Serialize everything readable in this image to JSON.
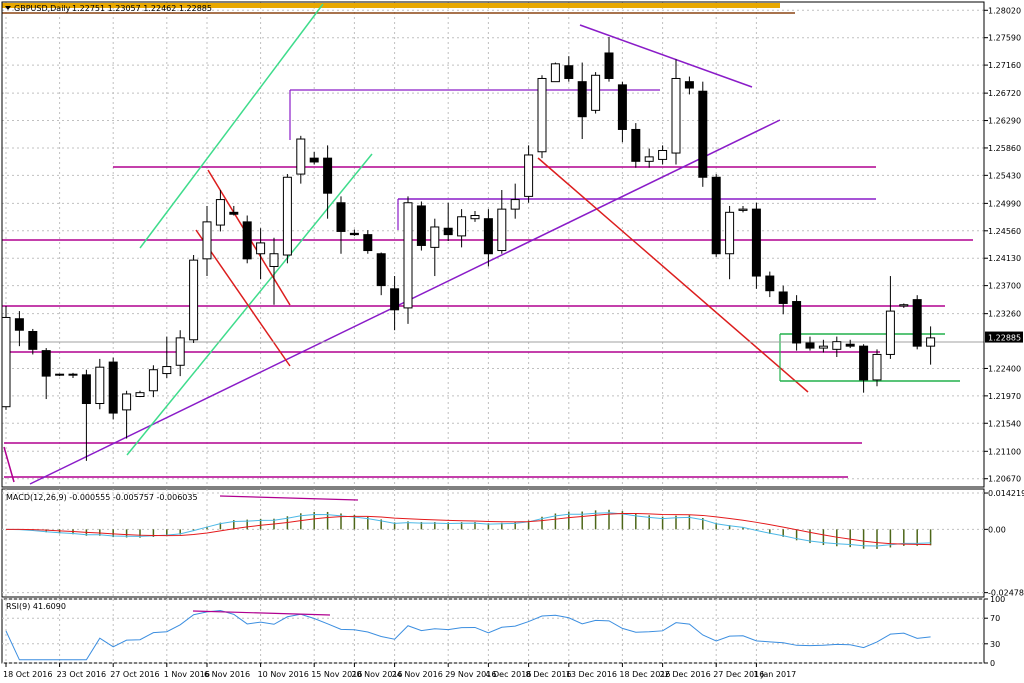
{
  "window": {
    "symbol_title": "GBPUSD,Daily",
    "ohlc_text": "1.22751 1.23057 1.22462 1.22885"
  },
  "price_axis": {
    "ticks": [
      "1.28020",
      "1.27590",
      "1.27160",
      "1.26720",
      "1.26290",
      "1.25860",
      "1.25430",
      "1.24990",
      "1.24560",
      "1.24130",
      "1.23700",
      "1.23260",
      "1.22400",
      "1.21970",
      "1.21540",
      "1.21100",
      "1.20670"
    ],
    "current_price": "1.22885",
    "range": [
      1.2054,
      1.2815
    ]
  },
  "macd_panel": {
    "title": "MACD(12,26,9) -0.000555 -0.005757 -0.006035",
    "ticks": [
      "0.014219",
      "0.00",
      "-0.024787"
    ],
    "range": [
      -0.0265,
      0.0158
    ]
  },
  "rsi_panel": {
    "title": "RSI(9) 41.6090",
    "ticks": [
      "100",
      "70",
      "30",
      "0"
    ],
    "range": [
      0,
      100
    ]
  },
  "date_axis": {
    "labels": [
      "18 Oct 2016",
      "23 Oct 2016",
      "27 Oct 2016",
      "1 Nov 2016",
      "6 Nov 2016",
      "10 Nov 2016",
      "15 Nov 2016",
      "20 Nov 2016",
      "24 Nov 2016",
      "29 Nov 2016",
      "4 Dec 2016",
      "8 Dec 2016",
      "13 Dec 2016",
      "18 Dec 2016",
      "22 Dec 2016",
      "27 Dec 2016",
      "1 Jan 2017"
    ]
  },
  "colors": {
    "bull": "#ffffff",
    "bear": "#000000",
    "grid": "#c0c0c0",
    "magenta": "#b0008f",
    "purple": "#8a1cc8",
    "red": "#dc1e1e",
    "green": "#22b14c",
    "cyan": "#3fdc8c",
    "gold": "#e8a800",
    "macd_hist": "#4d6619",
    "signal": "#e41a1c",
    "macd_line": "#4cb8e6",
    "rsi": "#3b8ee0"
  },
  "chart_data": {
    "type": "candlestick",
    "title": "GBPUSD,Daily",
    "candles": [
      {
        "o": 1.218,
        "h": 1.2338,
        "l": 1.2175,
        "c": 1.232
      },
      {
        "o": 1.2318,
        "h": 1.233,
        "l": 1.2275,
        "c": 1.23
      },
      {
        "o": 1.2298,
        "h": 1.2302,
        "l": 1.2262,
        "c": 1.227
      },
      {
        "o": 1.2268,
        "h": 1.2272,
        "l": 1.2192,
        "c": 1.2228
      },
      {
        "o": 1.223,
        "h": 1.2232,
        "l": 1.2228,
        "c": 1.2231
      },
      {
        "o": 1.2231,
        "h": 1.2233,
        "l": 1.2225,
        "c": 1.223
      },
      {
        "o": 1.223,
        "h": 1.2238,
        "l": 1.2095,
        "c": 1.2185
      },
      {
        "o": 1.2185,
        "h": 1.2255,
        "l": 1.2176,
        "c": 1.2242
      },
      {
        "o": 1.225,
        "h": 1.2257,
        "l": 1.216,
        "c": 1.217
      },
      {
        "o": 1.2175,
        "h": 1.2205,
        "l": 1.213,
        "c": 1.22
      },
      {
        "o": 1.2196,
        "h": 1.2205,
        "l": 1.2195,
        "c": 1.2202
      },
      {
        "o": 1.2205,
        "h": 1.2245,
        "l": 1.2195,
        "c": 1.2238
      },
      {
        "o": 1.2232,
        "h": 1.229,
        "l": 1.2225,
        "c": 1.2243
      },
      {
        "o": 1.2245,
        "h": 1.23,
        "l": 1.2228,
        "c": 1.2288
      },
      {
        "o": 1.2285,
        "h": 1.2418,
        "l": 1.228,
        "c": 1.241
      },
      {
        "o": 1.2412,
        "h": 1.2495,
        "l": 1.2385,
        "c": 1.247
      },
      {
        "o": 1.2465,
        "h": 1.252,
        "l": 1.2455,
        "c": 1.2505
      },
      {
        "o": 1.2485,
        "h": 1.2495,
        "l": 1.248,
        "c": 1.2482
      },
      {
        "o": 1.247,
        "h": 1.248,
        "l": 1.2405,
        "c": 1.2412
      },
      {
        "o": 1.242,
        "h": 1.246,
        "l": 1.238,
        "c": 1.2437
      },
      {
        "o": 1.24,
        "h": 1.2445,
        "l": 1.234,
        "c": 1.242
      },
      {
        "o": 1.2418,
        "h": 1.2545,
        "l": 1.2405,
        "c": 1.254
      },
      {
        "o": 1.2545,
        "h": 1.2605,
        "l": 1.253,
        "c": 1.26
      },
      {
        "o": 1.257,
        "h": 1.258,
        "l": 1.256,
        "c": 1.2564
      },
      {
        "o": 1.257,
        "h": 1.259,
        "l": 1.2475,
        "c": 1.2515
      },
      {
        "o": 1.25,
        "h": 1.251,
        "l": 1.242,
        "c": 1.2455
      },
      {
        "o": 1.2452,
        "h": 1.2458,
        "l": 1.2448,
        "c": 1.245
      },
      {
        "o": 1.245,
        "h": 1.2457,
        "l": 1.242,
        "c": 1.2425
      },
      {
        "o": 1.242,
        "h": 1.2422,
        "l": 1.2355,
        "c": 1.237
      },
      {
        "o": 1.2365,
        "h": 1.2385,
        "l": 1.23,
        "c": 1.2332
      },
      {
        "o": 1.2335,
        "h": 1.251,
        "l": 1.231,
        "c": 1.25
      },
      {
        "o": 1.2495,
        "h": 1.2502,
        "l": 1.2425,
        "c": 1.2433
      },
      {
        "o": 1.243,
        "h": 1.2475,
        "l": 1.2385,
        "c": 1.2462
      },
      {
        "o": 1.246,
        "h": 1.25,
        "l": 1.244,
        "c": 1.245
      },
      {
        "o": 1.2448,
        "h": 1.249,
        "l": 1.243,
        "c": 1.2478
      },
      {
        "o": 1.2475,
        "h": 1.2487,
        "l": 1.247,
        "c": 1.248
      },
      {
        "o": 1.2475,
        "h": 1.249,
        "l": 1.24,
        "c": 1.242
      },
      {
        "o": 1.2425,
        "h": 1.252,
        "l": 1.242,
        "c": 1.249
      },
      {
        "o": 1.249,
        "h": 1.253,
        "l": 1.2475,
        "c": 1.2505
      },
      {
        "o": 1.251,
        "h": 1.259,
        "l": 1.25,
        "c": 1.2575
      },
      {
        "o": 1.258,
        "h": 1.27,
        "l": 1.257,
        "c": 1.2695
      },
      {
        "o": 1.269,
        "h": 1.272,
        "l": 1.269,
        "c": 1.2718
      },
      {
        "o": 1.2715,
        "h": 1.273,
        "l": 1.269,
        "c": 1.2695
      },
      {
        "o": 1.269,
        "h": 1.272,
        "l": 1.26,
        "c": 1.2635
      },
      {
        "o": 1.2645,
        "h": 1.2705,
        "l": 1.264,
        "c": 1.27
      },
      {
        "o": 1.2735,
        "h": 1.276,
        "l": 1.269,
        "c": 1.2695
      },
      {
        "o": 1.2685,
        "h": 1.269,
        "l": 1.2595,
        "c": 1.2615
      },
      {
        "o": 1.2615,
        "h": 1.2625,
        "l": 1.2555,
        "c": 1.2565
      },
      {
        "o": 1.2565,
        "h": 1.2585,
        "l": 1.2555,
        "c": 1.2572
      },
      {
        "o": 1.2568,
        "h": 1.259,
        "l": 1.256,
        "c": 1.2582
      },
      {
        "o": 1.2578,
        "h": 1.2725,
        "l": 1.256,
        "c": 1.2695
      },
      {
        "o": 1.269,
        "h": 1.2698,
        "l": 1.267,
        "c": 1.268
      },
      {
        "o": 1.2675,
        "h": 1.269,
        "l": 1.2525,
        "c": 1.254
      },
      {
        "o": 1.254,
        "h": 1.2545,
        "l": 1.2415,
        "c": 1.242
      },
      {
        "o": 1.242,
        "h": 1.2495,
        "l": 1.238,
        "c": 1.2485
      },
      {
        "o": 1.2488,
        "h": 1.2495,
        "l": 1.2485,
        "c": 1.249
      },
      {
        "o": 1.249,
        "h": 1.25,
        "l": 1.2365,
        "c": 1.2385
      },
      {
        "o": 1.2385,
        "h": 1.2392,
        "l": 1.2352,
        "c": 1.2362
      },
      {
        "o": 1.236,
        "h": 1.237,
        "l": 1.2325,
        "c": 1.2342
      },
      {
        "o": 1.2345,
        "h": 1.2355,
        "l": 1.2268,
        "c": 1.228
      },
      {
        "o": 1.228,
        "h": 1.229,
        "l": 1.2268,
        "c": 1.2272
      },
      {
        "o": 1.2272,
        "h": 1.2285,
        "l": 1.2265,
        "c": 1.2275
      },
      {
        "o": 1.227,
        "h": 1.229,
        "l": 1.2258,
        "c": 1.2282
      },
      {
        "o": 1.2278,
        "h": 1.2285,
        "l": 1.2272,
        "c": 1.2275
      },
      {
        "o": 1.2275,
        "h": 1.2278,
        "l": 1.2202,
        "c": 1.2222
      },
      {
        "o": 1.2222,
        "h": 1.227,
        "l": 1.2212,
        "c": 1.2262
      },
      {
        "o": 1.2262,
        "h": 1.2385,
        "l": 1.2255,
        "c": 1.233
      },
      {
        "o": 1.2338,
        "h": 1.2342,
        "l": 1.2335,
        "c": 1.234
      },
      {
        "o": 1.2348,
        "h": 1.2355,
        "l": 1.227,
        "c": 1.2275
      },
      {
        "o": 1.2275,
        "h": 1.2306,
        "l": 1.2246,
        "c": 1.2288
      }
    ]
  }
}
